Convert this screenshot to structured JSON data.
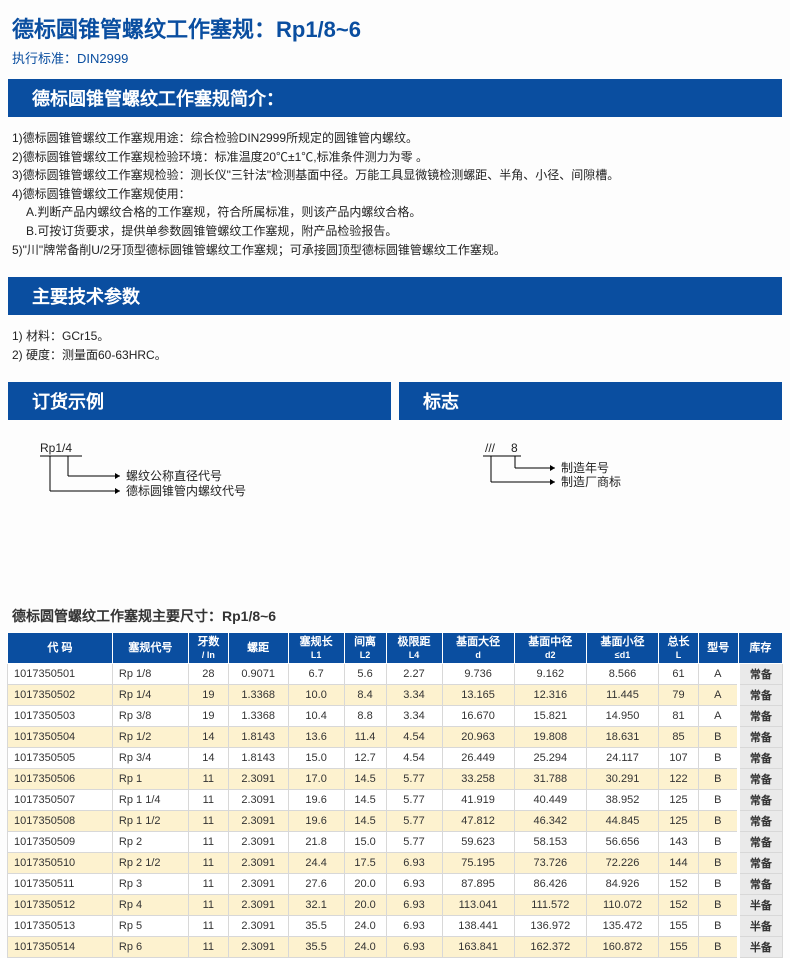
{
  "title": "德标圆锥管螺纹工作塞规：Rp1/8~6",
  "subtitle": "执行标准：DIN2999",
  "section_intro_title": "德标圆锥管螺纹工作塞规简介：",
  "intro_lines": [
    "1)德标圆锥管螺纹工作塞规用途：综合检验DIN2999所规定的圆锥管内螺纹。",
    "2)德标圆锥管螺纹工作塞规检验环境：标准温度20℃±1℃,标准条件测力为零 。",
    "3)德标圆锥管螺纹工作塞规检验：测长仪\"三针法\"检测基面中径。万能工具显微镜检测螺距、半角、小径、间隙槽。",
    "4)德标圆锥管螺纹工作塞规使用：",
    "A.判断产品内螺纹合格的工作塞规，符合所属标准，则该产品内螺纹合格。",
    "B.可按订货要求，提供单参数圆锥管螺纹工作塞规，附产品检验报告。",
    "5)\"川\"牌常备削U/2牙顶型德标圆锥管螺纹工作塞规；可承接圆顶型德标圆锥管螺纹工作塞规。"
  ],
  "section_params_title": "主要技术参数",
  "params_lines": [
    "1) 材料：GCr15。",
    "2) 硬度：测量面60-63HRC。"
  ],
  "section_order_title": "订货示例",
  "section_mark_title": "标志",
  "order_example": {
    "code": "Rp1/4",
    "label1": "螺纹公称直径代号",
    "label2": "德标圆锥管内螺纹代号"
  },
  "mark_example": {
    "code1": "///",
    "code2": "8",
    "label1": "制造年号",
    "label2": "制造厂商标"
  },
  "table_title": "德标圆管螺纹工作塞规主要尺寸：Rp1/8~6",
  "columns": [
    {
      "h": "代  码"
    },
    {
      "h": "塞规代号"
    },
    {
      "h": "牙数",
      "s": "/ In"
    },
    {
      "h": "螺距"
    },
    {
      "h": "塞规长",
      "s": "L1"
    },
    {
      "h": "间离",
      "s": "L2"
    },
    {
      "h": "极限距",
      "s": "L4"
    },
    {
      "h": "基面大径",
      "s": "d"
    },
    {
      "h": "基面中径",
      "s": "d2"
    },
    {
      "h": "基面小径",
      "s": "≤d1"
    },
    {
      "h": "总长",
      "s": "L"
    },
    {
      "h": "型号"
    },
    {
      "h": "库存"
    }
  ],
  "rows": [
    [
      "1017350501",
      "Rp 1/8",
      "28",
      "0.9071",
      "6.7",
      "5.6",
      "2.27",
      "9.736",
      "9.162",
      "8.566",
      "61",
      "A",
      "常备"
    ],
    [
      "1017350502",
      "Rp 1/4",
      "19",
      "1.3368",
      "10.0",
      "8.4",
      "3.34",
      "13.165",
      "12.316",
      "11.445",
      "79",
      "A",
      "常备"
    ],
    [
      "1017350503",
      "Rp 3/8",
      "19",
      "1.3368",
      "10.4",
      "8.8",
      "3.34",
      "16.670",
      "15.821",
      "14.950",
      "81",
      "A",
      "常备"
    ],
    [
      "1017350504",
      "Rp 1/2",
      "14",
      "1.8143",
      "13.6",
      "11.4",
      "4.54",
      "20.963",
      "19.808",
      "18.631",
      "85",
      "B",
      "常备"
    ],
    [
      "1017350505",
      "Rp 3/4",
      "14",
      "1.8143",
      "15.0",
      "12.7",
      "4.54",
      "26.449",
      "25.294",
      "24.117",
      "107",
      "B",
      "常备"
    ],
    [
      "1017350506",
      "Rp 1",
      "11",
      "2.3091",
      "17.0",
      "14.5",
      "5.77",
      "33.258",
      "31.788",
      "30.291",
      "122",
      "B",
      "常备"
    ],
    [
      "1017350507",
      "Rp 1 1/4",
      "11",
      "2.3091",
      "19.6",
      "14.5",
      "5.77",
      "41.919",
      "40.449",
      "38.952",
      "125",
      "B",
      "常备"
    ],
    [
      "1017350508",
      "Rp 1 1/2",
      "11",
      "2.3091",
      "19.6",
      "14.5",
      "5.77",
      "47.812",
      "46.342",
      "44.845",
      "125",
      "B",
      "常备"
    ],
    [
      "1017350509",
      "Rp 2",
      "11",
      "2.3091",
      "21.8",
      "15.0",
      "5.77",
      "59.623",
      "58.153",
      "56.656",
      "143",
      "B",
      "常备"
    ],
    [
      "1017350510",
      "Rp 2 1/2",
      "11",
      "2.3091",
      "24.4",
      "17.5",
      "6.93",
      "75.195",
      "73.726",
      "72.226",
      "144",
      "B",
      "常备"
    ],
    [
      "1017350511",
      "Rp 3",
      "11",
      "2.3091",
      "27.6",
      "20.0",
      "6.93",
      "87.895",
      "86.426",
      "84.926",
      "152",
      "B",
      "常备"
    ],
    [
      "1017350512",
      "Rp 4",
      "11",
      "2.3091",
      "32.1",
      "20.0",
      "6.93",
      "113.041",
      "111.572",
      "110.072",
      "152",
      "B",
      "半备"
    ],
    [
      "1017350513",
      "Rp 5",
      "11",
      "2.3091",
      "35.5",
      "24.0",
      "6.93",
      "138.441",
      "136.972",
      "135.472",
      "155",
      "B",
      "半备"
    ],
    [
      "1017350514",
      "Rp 6",
      "11",
      "2.3091",
      "35.5",
      "24.0",
      "6.93",
      "163.841",
      "162.372",
      "160.872",
      "155",
      "B",
      "半备"
    ]
  ],
  "colors": {
    "primary": "#0a4ea0",
    "alt_row": "#fdf2cf",
    "stock_bg": "#eaeaea"
  }
}
